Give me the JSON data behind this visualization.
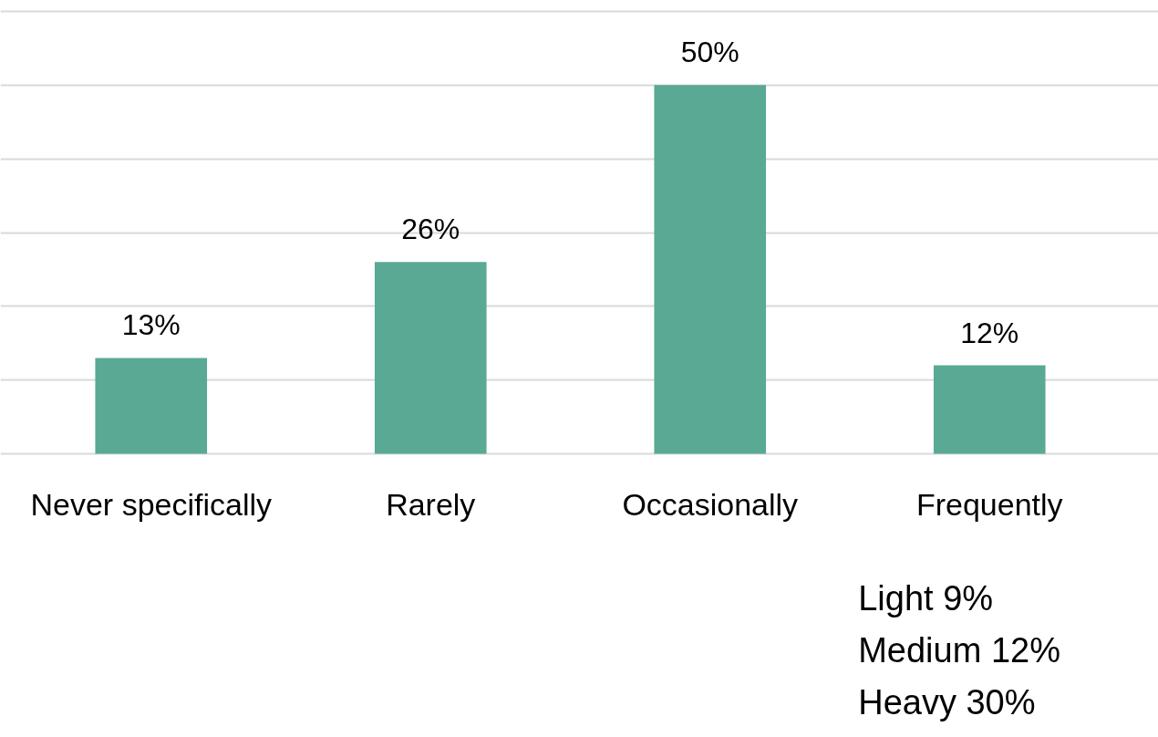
{
  "chart_data": {
    "type": "bar",
    "categories": [
      "Never specifically",
      "Rarely",
      "Occasionally",
      "Frequently"
    ],
    "values": [
      13,
      26,
      50,
      12
    ],
    "color": "#59a994",
    "value_labels": [
      "13%",
      "26%",
      "50%",
      "12%"
    ],
    "ylim": [
      0,
      60
    ],
    "yticks": [
      {
        "value": 0,
        "label": null
      },
      {
        "value": 10,
        "label": null
      },
      {
        "value": 20,
        "label": null
      },
      {
        "value": 30,
        "label": null
      },
      {
        "value": 40,
        "label": null
      },
      {
        "value": 50,
        "label": null
      },
      {
        "value": 60,
        "label": null
      }
    ],
    "tick_labels": "x",
    "grid": "y",
    "annotations": [
      "Light 9%",
      "Medium 12%",
      "Heavy 30%"
    ]
  }
}
